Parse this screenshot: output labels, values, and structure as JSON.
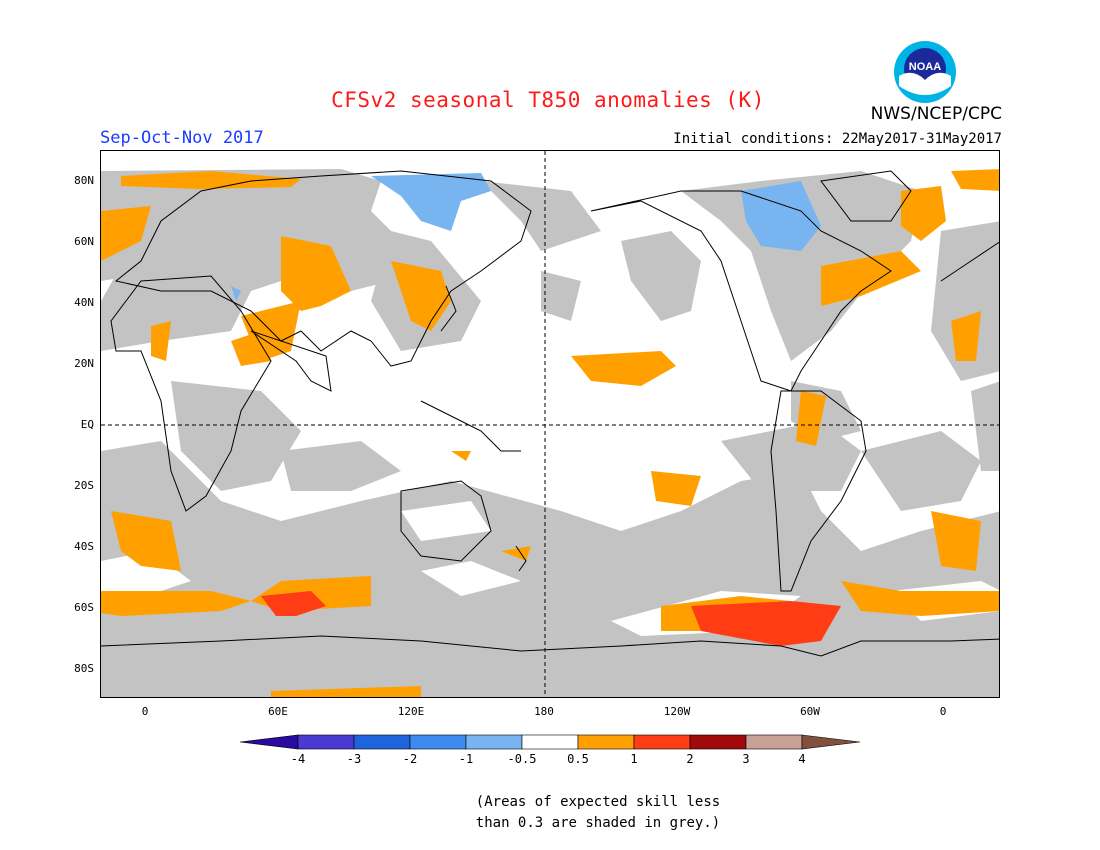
{
  "header": {
    "title": "CFSv2 seasonal T850 anomalies (K)",
    "agency": "NWS/NCEP/CPC",
    "season": "Sep-Oct-Nov 2017",
    "initial_conditions": "Initial conditions: 22May2017-31May2017"
  },
  "logo": {
    "text": "NOAA",
    "colors": {
      "outer": "#00b4e6",
      "inner": "#1a2a9a",
      "gull": "#ffffff"
    }
  },
  "map": {
    "projection": "cylindrical equidistant",
    "lat_labels": [
      "80N",
      "60N",
      "40N",
      "20N",
      "EQ",
      "20S",
      "40S",
      "60S",
      "80S"
    ],
    "lon_labels": [
      "0",
      "60E",
      "120E",
      "180",
      "120W",
      "60W",
      "0"
    ],
    "grey_meaning": "low skill",
    "colors": {
      "grey": "#c3c3c3",
      "orange": "#ffa000",
      "red_orange": "#ff3c14",
      "light_blue": "#78b4f0",
      "coast": "#000000"
    }
  },
  "colorbar": {
    "labels": [
      "-4",
      "-3",
      "-2",
      "-1",
      "-0.5",
      "0.5",
      "1",
      "2",
      "3",
      "4"
    ],
    "colors": [
      "#2a0aa0",
      "#4b3ad2",
      "#1f64dc",
      "#3c8cf0",
      "#78b4f0",
      "#ffffff",
      "#ffa000",
      "#ff3c14",
      "#a00a0a",
      "#c8a096",
      "#82503c"
    ]
  },
  "footnote": {
    "line1": "(Areas of expected skill less",
    "line2": "than 0.3 are shaded in grey.)"
  }
}
